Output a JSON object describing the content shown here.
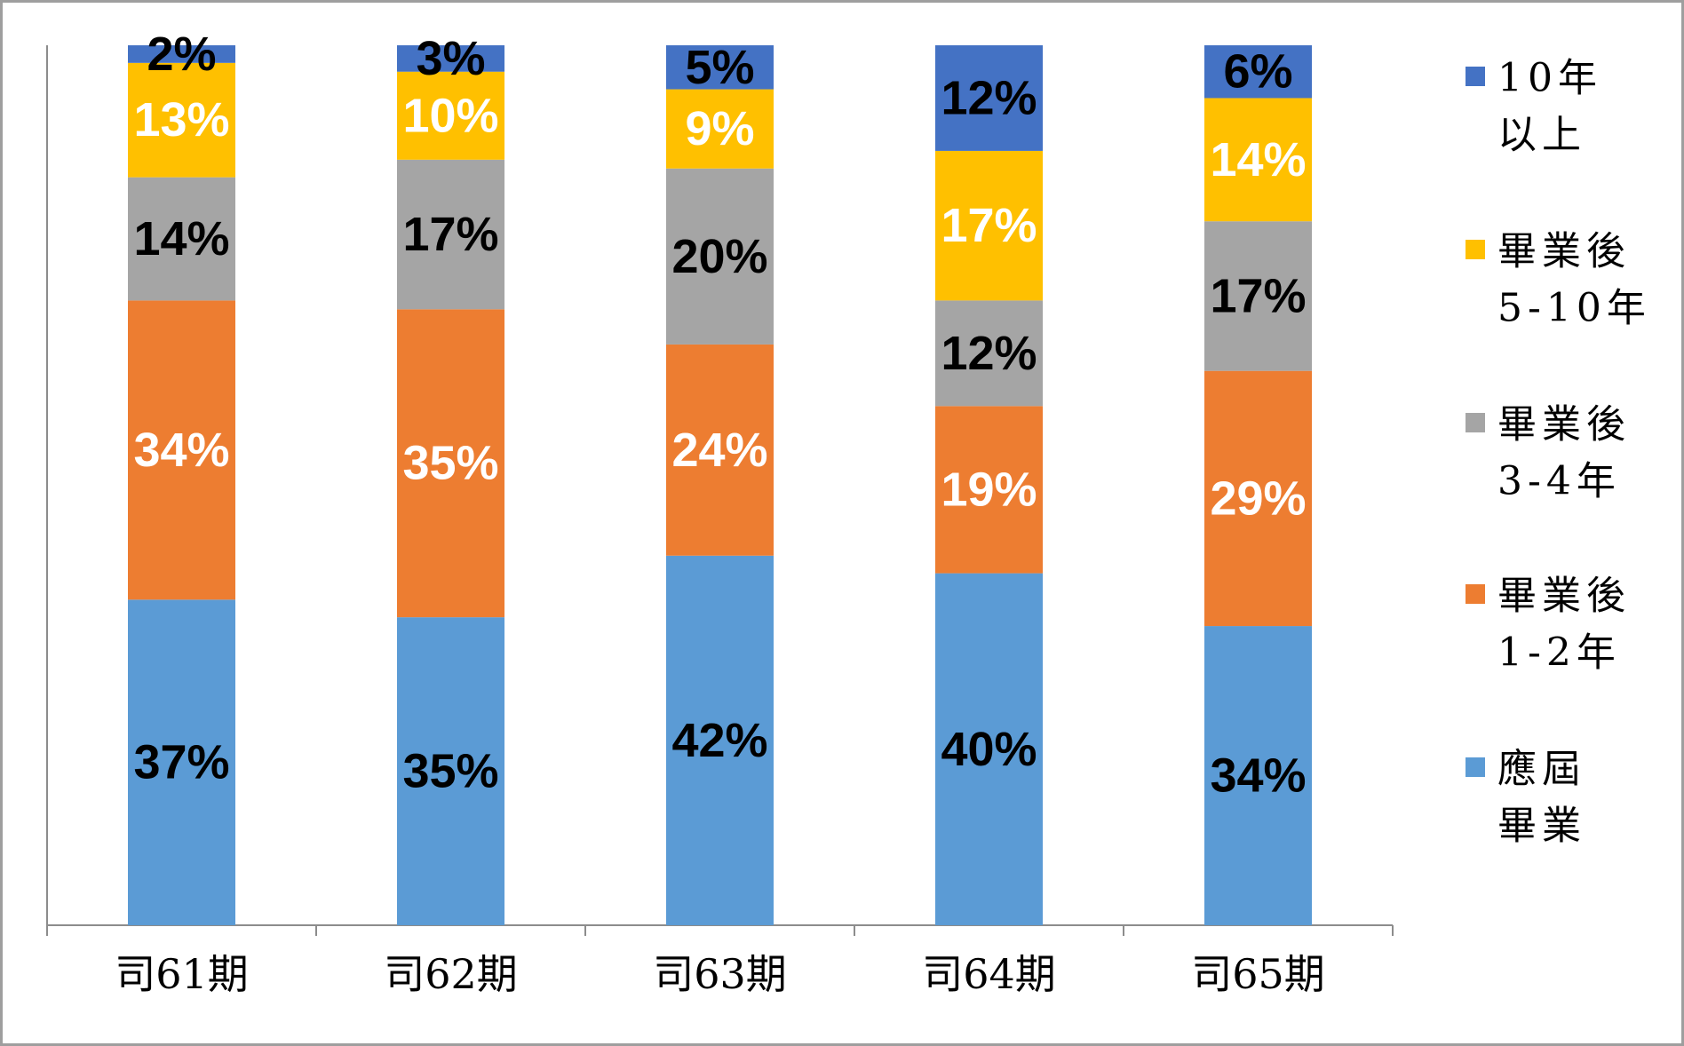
{
  "chart_data": {
    "type": "bar",
    "stacked": true,
    "categories": [
      "司61期",
      "司62期",
      "司63期",
      "司64期",
      "司65期"
    ],
    "series": [
      {
        "name": "應屆畢業",
        "legend_lines": [
          "應屆",
          "畢業"
        ],
        "color": "#5b9bd5",
        "label_color": "#000000",
        "values": [
          37,
          35,
          42,
          40,
          34
        ],
        "labels": [
          "37%",
          "35%",
          "42%",
          "40%",
          "34%"
        ]
      },
      {
        "name": "畢業後1-2年",
        "legend_lines": [
          "畢業後",
          "1-2年"
        ],
        "color": "#ed7d31",
        "label_color": "#ffffff",
        "values": [
          34,
          35,
          24,
          19,
          29
        ],
        "labels": [
          "34%",
          "35%",
          "24%",
          "19%",
          "29%"
        ]
      },
      {
        "name": "畢業後3-4年",
        "legend_lines": [
          "畢業後",
          "3-4年"
        ],
        "color": "#a5a5a5",
        "label_color": "#000000",
        "values": [
          14,
          17,
          20,
          12,
          17
        ],
        "labels": [
          "14%",
          "17%",
          "20%",
          "12%",
          "17%"
        ]
      },
      {
        "name": "畢業後5-10年",
        "legend_lines": [
          "畢業後",
          "5-10年"
        ],
        "color": "#ffc000",
        "label_color": "#ffffff",
        "values": [
          13,
          10,
          9,
          17,
          14
        ],
        "labels": [
          "13%",
          "10%",
          "9%",
          "17%",
          "14%"
        ]
      },
      {
        "name": "10年以上",
        "legend_lines": [
          "10年",
          "以上"
        ],
        "color": "#4472c4",
        "label_color": "#000000",
        "values": [
          2,
          3,
          5,
          12,
          6
        ],
        "labels": [
          "2%",
          "3%",
          "5%",
          "12%",
          "6%"
        ]
      }
    ],
    "ylim": [
      0,
      100
    ],
    "grid": false,
    "legend_position": "right"
  }
}
